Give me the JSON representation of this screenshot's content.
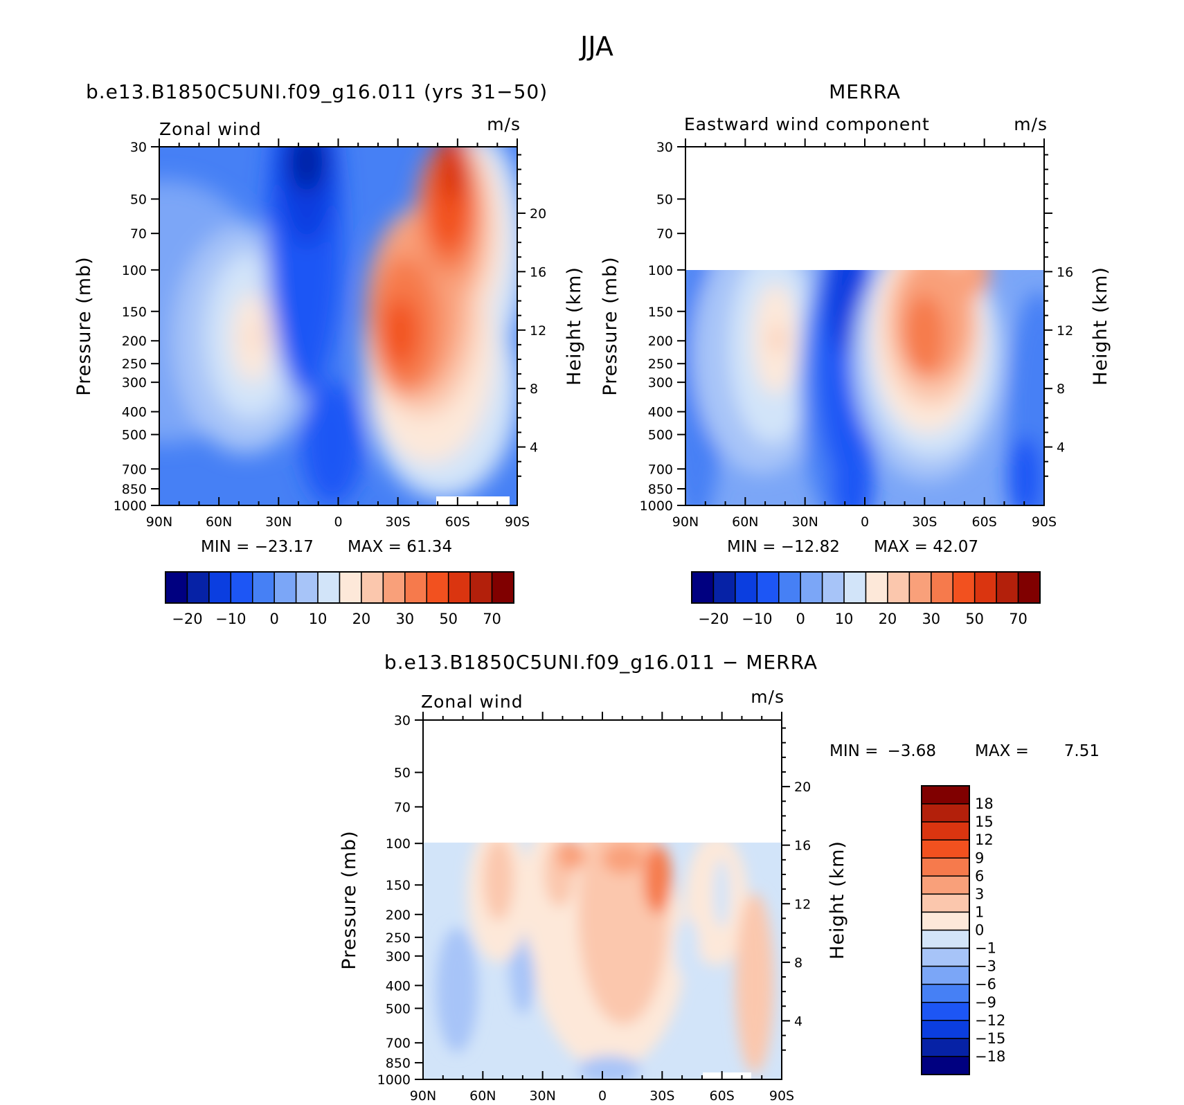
{
  "figure": {
    "title": "JJA"
  },
  "colorbar_abs": {
    "colors": [
      "#000080",
      "#0622a6",
      "#0b3ee0",
      "#1d56f5",
      "#4680f5",
      "#7ba6f7",
      "#a7c4f8",
      "#d2e4f9",
      "#fde8d9",
      "#fbc7ad",
      "#f9a07a",
      "#f67a4c",
      "#f2511f",
      "#da3510",
      "#b3200b",
      "#800000"
    ],
    "labels": [
      "−20",
      "−10",
      "0",
      "10",
      "20",
      "30",
      "50",
      "70"
    ]
  },
  "colorbar_diff": {
    "colors": [
      "#000080",
      "#0622a6",
      "#0b3ee0",
      "#1d56f5",
      "#4680f5",
      "#7ba6f7",
      "#a7c4f8",
      "#d2e4f9",
      "#fde8d9",
      "#fbc7ad",
      "#f9a07a",
      "#f67a4c",
      "#f2511f",
      "#da3510",
      "#b3200b",
      "#800000"
    ],
    "labels": [
      "18",
      "15",
      "12",
      "9",
      "6",
      "3",
      "1",
      "0",
      "−1",
      "−3",
      "−6",
      "−9",
      "−12",
      "−15",
      "−18"
    ]
  },
  "chart_data": [
    {
      "type": "heatmap",
      "title": "b.e13.B1850C5UNI.f09_g16.011 (yrs 31−50)",
      "left_label": "Zonal wind",
      "units": "m/s",
      "ylabel": "Pressure (mb)",
      "ylabel_right": "Height (km)",
      "x_ticklabels": [
        "90N",
        "60N",
        "30N",
        "0",
        "30S",
        "60S",
        "90S"
      ],
      "y_ticklabels": [
        "30",
        "50",
        "70",
        "100",
        "150",
        "200",
        "250",
        "300",
        "400",
        "500",
        "700",
        "850",
        "1000"
      ],
      "y2_ticklabels": [
        "20",
        "16",
        "12",
        "8",
        "4"
      ],
      "min_label": "MIN =  −23.17",
      "max_label": "MAX =   61.34",
      "min": -23.17,
      "max": 61.34,
      "ylim_mb": [
        1000,
        30
      ]
    },
    {
      "type": "heatmap",
      "title": "MERRA",
      "left_label": "Eastward wind component",
      "units": "m/s",
      "ylabel": "Pressure (mb)",
      "ylabel_right": "Height (km)",
      "x_ticklabels": [
        "90N",
        "60N",
        "30N",
        "0",
        "30S",
        "60S",
        "90S"
      ],
      "y_ticklabels": [
        "30",
        "50",
        "70",
        "100",
        "150",
        "200",
        "250",
        "300",
        "400",
        "500",
        "700",
        "850",
        "1000"
      ],
      "y2_ticklabels": [
        "16",
        "12",
        "8",
        "4"
      ],
      "min_label": "MIN =  −12.82",
      "max_label": "MAX =   42.07",
      "min": -12.82,
      "max": 42.07,
      "ylim_mb": [
        1000,
        30
      ],
      "data_top_mb": 100
    },
    {
      "type": "heatmap",
      "title": "b.e13.B1850C5UNI.f09_g16.011 − MERRA",
      "left_label": "Zonal wind",
      "units": "m/s",
      "ylabel": "Pressure (mb)",
      "ylabel_right": "Height (km)",
      "x_ticklabels": [
        "90N",
        "60N",
        "30N",
        "0",
        "30S",
        "60S",
        "90S"
      ],
      "y_ticklabels": [
        "30",
        "50",
        "70",
        "100",
        "150",
        "200",
        "250",
        "300",
        "400",
        "500",
        "700",
        "850",
        "1000"
      ],
      "y2_ticklabels": [
        "20",
        "16",
        "12",
        "8",
        "4"
      ],
      "min_label": "MIN =",
      "min_value": "−3.68",
      "max_label": "MAX =",
      "max_value": "7.51",
      "min": -3.68,
      "max": 7.51,
      "ylim_mb": [
        1000,
        30
      ],
      "data_top_mb": 100
    }
  ]
}
